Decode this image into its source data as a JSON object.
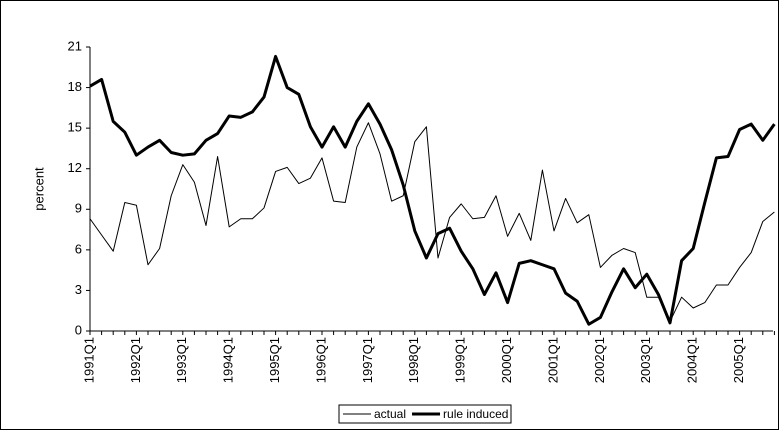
{
  "chart_data": {
    "type": "line",
    "y_label": "percent",
    "categories": [
      "1991Q1",
      null,
      null,
      null,
      "1992Q1",
      null,
      null,
      null,
      "1993Q1",
      null,
      null,
      null,
      "1994Q1",
      null,
      null,
      null,
      "1995Q1",
      null,
      null,
      null,
      "1996Q1",
      null,
      null,
      null,
      "1997Q1",
      null,
      null,
      null,
      "1998Q1",
      null,
      null,
      null,
      "1999Q1",
      null,
      null,
      null,
      "2000Q1",
      null,
      null,
      null,
      "2001Q1",
      null,
      null,
      null,
      "2002Q1",
      null,
      null,
      null,
      "2003Q1",
      null,
      null,
      null,
      "2004Q1",
      null,
      null,
      null,
      "2005Q1",
      null,
      null,
      null
    ],
    "series": [
      {
        "name": "actual",
        "color": "#000000",
        "width": 1,
        "values": [
          8.3,
          7.1,
          5.9,
          9.5,
          9.3,
          4.9,
          6.1,
          10.0,
          12.3,
          11.0,
          7.8,
          12.9,
          7.7,
          8.3,
          8.3,
          9.1,
          11.8,
          12.1,
          10.9,
          11.3,
          12.8,
          9.6,
          9.5,
          13.6,
          15.4,
          13.1,
          9.6,
          10.0,
          14.0,
          15.1,
          5.4,
          8.4,
          9.4,
          8.3,
          8.4,
          10.0,
          7.0,
          8.7,
          6.7,
          11.9,
          7.4,
          9.8,
          8.0,
          8.6,
          4.7,
          5.6,
          6.1,
          5.8,
          2.5,
          2.5,
          0.7,
          2.5,
          1.7,
          2.1,
          3.4,
          3.4,
          4.7,
          5.8,
          8.1,
          8.8
        ]
      },
      {
        "name": "rule induced",
        "color": "#000000",
        "width": 3,
        "values": [
          18.1,
          18.6,
          15.5,
          14.7,
          13.0,
          13.6,
          14.1,
          13.2,
          13.0,
          13.1,
          14.1,
          14.6,
          15.9,
          15.8,
          16.2,
          17.3,
          20.3,
          18.0,
          17.5,
          15.1,
          13.6,
          15.1,
          13.6,
          15.5,
          16.8,
          15.3,
          13.4,
          10.8,
          7.4,
          5.4,
          7.2,
          7.6,
          5.9,
          4.6,
          2.7,
          4.3,
          2.1,
          5.0,
          5.2,
          4.9,
          4.6,
          2.8,
          2.2,
          0.5,
          1.0,
          2.9,
          4.6,
          3.2,
          4.2,
          2.7,
          0.6,
          5.2,
          6.1,
          9.5,
          12.8,
          12.9,
          14.9,
          15.3,
          14.1,
          15.3
        ]
      }
    ],
    "ylim": [
      0,
      21
    ],
    "yticks": [
      0,
      3,
      6,
      9,
      12,
      15,
      18,
      21
    ],
    "legend": "bottom"
  }
}
